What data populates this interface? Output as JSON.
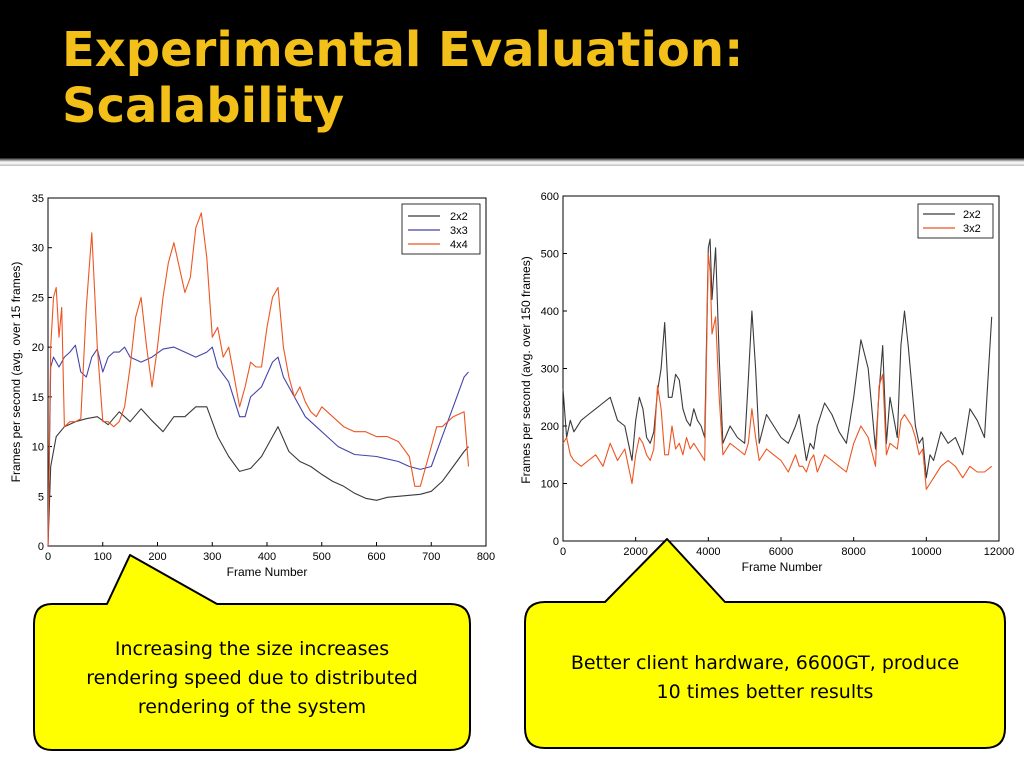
{
  "slide": {
    "title_line1": "Experimental Evaluation:",
    "title_line2": "Scalability",
    "colors": {
      "title": "#f2c018",
      "background": "#000000",
      "callout_fill": "#ffff00"
    }
  },
  "callouts": [
    {
      "lines": [
        "Increasing the size increases",
        "rendering speed due to distributed",
        "rendering of the system"
      ]
    },
    {
      "lines": [
        "Better client hardware, 6600GT, produce",
        "10 times better results"
      ]
    }
  ],
  "chart_data": [
    {
      "type": "line",
      "xlabel": "Frame Number",
      "ylabel": "Frames per second (avg. over 15 frames)",
      "xlim": [
        0,
        800
      ],
      "ylim": [
        0,
        35
      ],
      "xticks": [
        0,
        100,
        200,
        300,
        400,
        500,
        600,
        700,
        800
      ],
      "yticks": [
        0,
        5,
        10,
        15,
        20,
        25,
        30,
        35
      ],
      "legend_position": "top-right",
      "series": [
        {
          "name": "2x2",
          "color": "#3a3a3a",
          "x": [
            0,
            5,
            15,
            30,
            50,
            70,
            90,
            110,
            130,
            150,
            170,
            190,
            210,
            230,
            250,
            270,
            290,
            310,
            330,
            350,
            370,
            390,
            410,
            420,
            440,
            460,
            480,
            500,
            520,
            540,
            560,
            580,
            600,
            620,
            640,
            660,
            680,
            700,
            720,
            740,
            760,
            768
          ],
          "y": [
            0,
            8,
            11,
            12,
            12.5,
            12.8,
            13,
            12.2,
            13.5,
            12.5,
            13.8,
            12.6,
            11.5,
            13,
            13,
            14,
            14,
            11,
            9,
            7.5,
            7.8,
            9,
            11,
            12,
            9.5,
            8.5,
            8,
            7.2,
            6.5,
            6,
            5.3,
            4.8,
            4.6,
            4.9,
            5,
            5.1,
            5.2,
            5.5,
            6.5,
            8,
            9.5,
            10
          ]
        },
        {
          "name": "3x3",
          "color": "#4444aa",
          "x": [
            0,
            5,
            10,
            20,
            30,
            40,
            50,
            60,
            70,
            80,
            90,
            100,
            110,
            120,
            130,
            140,
            150,
            170,
            190,
            210,
            230,
            250,
            270,
            290,
            300,
            310,
            330,
            350,
            360,
            370,
            390,
            410,
            420,
            430,
            450,
            470,
            490,
            510,
            530,
            560,
            600,
            640,
            660,
            680,
            700,
            720,
            740,
            760,
            768
          ],
          "y": [
            0,
            18,
            19,
            18,
            19,
            19.5,
            20.2,
            17.5,
            17,
            19,
            19.8,
            17.5,
            19,
            19.5,
            19.5,
            20,
            19,
            18.5,
            19,
            19.8,
            20,
            19.5,
            19,
            19.5,
            20,
            18,
            16.5,
            13,
            13,
            15,
            16,
            18.5,
            19,
            17,
            15,
            13,
            12,
            11,
            10,
            9.2,
            9,
            8.5,
            8,
            7.7,
            8,
            11,
            14,
            17,
            17.5
          ]
        },
        {
          "name": "4x4",
          "color": "#ee5522",
          "x": [
            0,
            5,
            10,
            15,
            20,
            25,
            30,
            40,
            50,
            60,
            70,
            80,
            90,
            100,
            110,
            120,
            130,
            140,
            150,
            160,
            170,
            180,
            190,
            200,
            210,
            220,
            230,
            240,
            250,
            260,
            270,
            280,
            290,
            300,
            310,
            320,
            330,
            340,
            350,
            360,
            370,
            380,
            390,
            400,
            410,
            420,
            425,
            430,
            440,
            450,
            460,
            470,
            480,
            490,
            500,
            520,
            540,
            560,
            580,
            600,
            620,
            640,
            660,
            670,
            680,
            690,
            700,
            710,
            720,
            740,
            760,
            768
          ],
          "y": [
            0,
            20,
            25,
            26,
            21,
            24,
            12,
            12.5,
            12.5,
            12.8,
            24,
            31.5,
            20,
            12.5,
            12.5,
            12,
            12.5,
            14,
            18,
            23,
            25,
            20,
            16,
            20,
            25,
            28.5,
            30.5,
            28,
            25.5,
            27,
            32,
            33.5,
            29,
            21,
            22,
            19,
            20,
            17,
            14,
            16,
            18.5,
            18,
            18,
            22,
            25,
            26,
            23,
            20,
            17,
            15,
            16,
            14.5,
            13.5,
            13,
            14,
            13,
            12,
            11.5,
            11.5,
            11,
            11,
            10.5,
            9,
            6,
            6,
            8,
            10,
            12,
            12,
            13,
            13.5,
            8
          ]
        }
      ]
    },
    {
      "type": "line",
      "xlabel": "Frame Number",
      "ylabel": "Frames per second (avg. over 150 frames)",
      "xlim": [
        0,
        12000
      ],
      "ylim": [
        0,
        600
      ],
      "xticks": [
        0,
        2000,
        4000,
        6000,
        8000,
        10000,
        12000
      ],
      "yticks": [
        0,
        100,
        200,
        300,
        400,
        500,
        600
      ],
      "legend_position": "top-right",
      "series": [
        {
          "name": "2x2",
          "color": "#3a3a3a",
          "x": [
            0,
            100,
            200,
            300,
            500,
            700,
            900,
            1100,
            1300,
            1500,
            1700,
            1900,
            2000,
            2100,
            2200,
            2300,
            2400,
            2500,
            2600,
            2700,
            2800,
            2900,
            3000,
            3100,
            3200,
            3300,
            3400,
            3500,
            3600,
            3700,
            3800,
            3900,
            4000,
            4050,
            4100,
            4200,
            4300,
            4400,
            4600,
            4800,
            5000,
            5100,
            5200,
            5300,
            5400,
            5600,
            5800,
            6000,
            6200,
            6400,
            6500,
            6600,
            6700,
            6800,
            6900,
            7000,
            7200,
            7400,
            7600,
            7800,
            8000,
            8200,
            8400,
            8600,
            8700,
            8800,
            8900,
            9000,
            9200,
            9300,
            9400,
            9500,
            9600,
            9700,
            9800,
            9900,
            10000,
            10100,
            10200,
            10400,
            10600,
            10800,
            11000,
            11200,
            11400,
            11600,
            11800
          ],
          "y": [
            265,
            180,
            210,
            190,
            210,
            220,
            230,
            240,
            250,
            210,
            200,
            140,
            210,
            250,
            230,
            180,
            170,
            190,
            260,
            300,
            380,
            250,
            250,
            290,
            280,
            230,
            210,
            200,
            230,
            210,
            200,
            180,
            510,
            525,
            420,
            510,
            320,
            170,
            200,
            180,
            170,
            280,
            400,
            300,
            170,
            220,
            200,
            180,
            170,
            200,
            220,
            180,
            140,
            170,
            160,
            200,
            240,
            220,
            190,
            170,
            250,
            350,
            300,
            160,
            260,
            340,
            170,
            250,
            180,
            340,
            400,
            340,
            270,
            200,
            170,
            180,
            110,
            150,
            140,
            190,
            170,
            180,
            150,
            230,
            210,
            180,
            390
          ]
        },
        {
          "name": "3x2",
          "color": "#ee5522",
          "x": [
            0,
            100,
            200,
            300,
            500,
            700,
            900,
            1100,
            1300,
            1500,
            1700,
            1900,
            2000,
            2100,
            2200,
            2300,
            2400,
            2500,
            2600,
            2700,
            2800,
            2900,
            3000,
            3100,
            3200,
            3300,
            3400,
            3500,
            3600,
            3700,
            3800,
            3900,
            4000,
            4050,
            4100,
            4200,
            4300,
            4400,
            4600,
            4800,
            5000,
            5100,
            5200,
            5300,
            5400,
            5600,
            5800,
            6000,
            6200,
            6400,
            6500,
            6600,
            6700,
            6800,
            6900,
            7000,
            7200,
            7400,
            7600,
            7800,
            8000,
            8200,
            8400,
            8600,
            8700,
            8800,
            8900,
            9000,
            9200,
            9300,
            9400,
            9500,
            9600,
            9700,
            9800,
            9900,
            10000,
            10100,
            10200,
            10400,
            10600,
            10800,
            11000,
            11200,
            11400,
            11600,
            11800
          ],
          "y": [
            170,
            180,
            150,
            140,
            130,
            140,
            150,
            130,
            170,
            140,
            160,
            100,
            150,
            180,
            170,
            150,
            140,
            160,
            270,
            230,
            150,
            150,
            200,
            160,
            170,
            150,
            180,
            160,
            170,
            160,
            150,
            140,
            500,
            470,
            360,
            390,
            250,
            150,
            170,
            160,
            150,
            170,
            230,
            180,
            140,
            160,
            150,
            140,
            120,
            150,
            130,
            130,
            120,
            140,
            150,
            120,
            150,
            140,
            130,
            120,
            170,
            200,
            180,
            130,
            270,
            290,
            150,
            170,
            160,
            210,
            220,
            210,
            200,
            180,
            150,
            160,
            90,
            100,
            110,
            130,
            140,
            130,
            110,
            130,
            120,
            120,
            130
          ]
        }
      ]
    }
  ]
}
